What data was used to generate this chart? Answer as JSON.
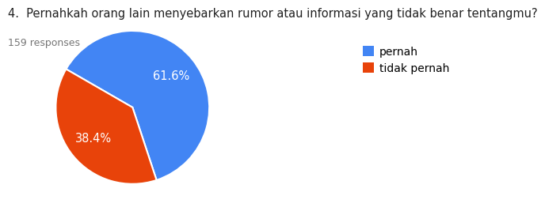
{
  "title": "4.  Pernahkah orang lain menyebarkan rumor atau informasi yang tidak benar tentangmu?",
  "subtitle": "159 responses",
  "labels": [
    "pernah",
    "tidak pernah"
  ],
  "values": [
    61.6,
    38.4
  ],
  "colors": [
    "#4285F4",
    "#E8430A"
  ],
  "background_color": "#ffffff",
  "title_fontsize": 10.5,
  "subtitle_fontsize": 9,
  "legend_fontsize": 10,
  "pct_fontsize": 10.5,
  "startangle": 150
}
